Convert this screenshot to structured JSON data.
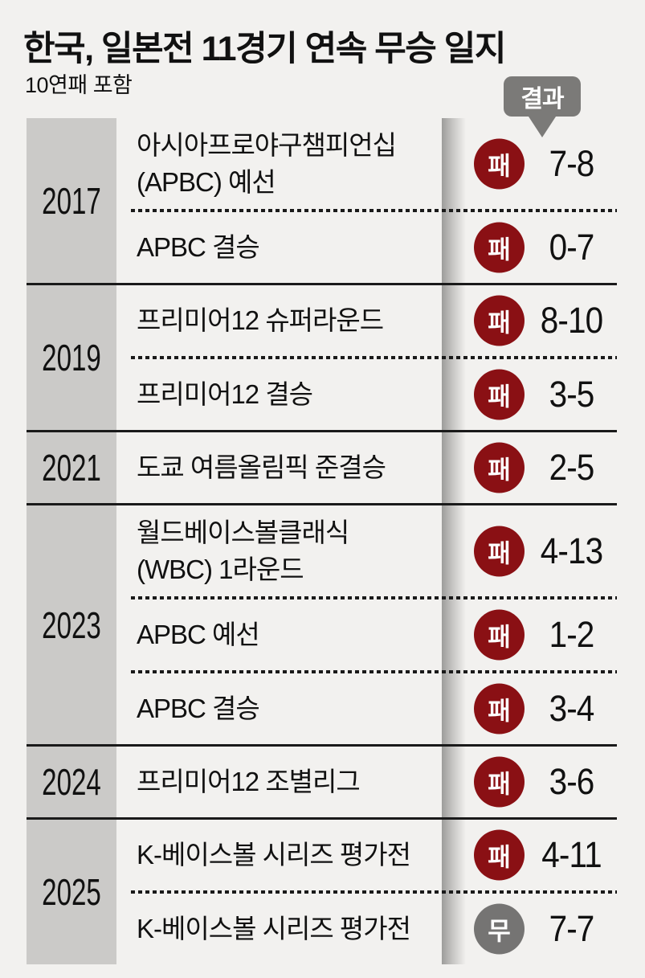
{
  "title": "한국, 일본전 11경기 연속 무승 일지",
  "subtitle": "10연패 포함",
  "callout": {
    "label": "결과"
  },
  "colors": {
    "page_bg": "#f2f1ef",
    "year_column_bg": "#cbcac8",
    "loss_badge": "#8a1014",
    "draw_badge": "#757473",
    "callout_bg": "#7b7a78",
    "line": "#1a1a1a",
    "text": "#111111",
    "badge_text": "#ffffff"
  },
  "chart_data": {
    "type": "table",
    "title": "한국, 일본전 11경기 연속 무승 일지",
    "subtitle": "10연패 포함",
    "columns": [
      "연도",
      "경기",
      "결과",
      "점수"
    ],
    "result_types": {
      "패": "loss",
      "무": "draw"
    },
    "groups": [
      {
        "year": "2017",
        "rows": [
          {
            "event": "아시아프로야구챔피언십 (APBC) 예선",
            "event_lines": [
              "아시아프로야구챔피언십",
              "(APBC) 예선"
            ],
            "result": "패",
            "outcome": "loss",
            "score": "7-8"
          },
          {
            "event": "APBC 결승",
            "event_lines": [
              "APBC 결승"
            ],
            "result": "패",
            "outcome": "loss",
            "score": "0-7"
          }
        ]
      },
      {
        "year": "2019",
        "rows": [
          {
            "event": "프리미어12 슈퍼라운드",
            "event_lines": [
              "프리미어12 슈퍼라운드"
            ],
            "result": "패",
            "outcome": "loss",
            "score": "8-10"
          },
          {
            "event": "프리미어12 결승",
            "event_lines": [
              "프리미어12 결승"
            ],
            "result": "패",
            "outcome": "loss",
            "score": "3-5"
          }
        ]
      },
      {
        "year": "2021",
        "rows": [
          {
            "event": "도쿄 여름올림픽 준결승",
            "event_lines": [
              "도쿄 여름올림픽 준결승"
            ],
            "result": "패",
            "outcome": "loss",
            "score": "2-5"
          }
        ]
      },
      {
        "year": "2023",
        "rows": [
          {
            "event": "월드베이스볼클래식 (WBC) 1라운드",
            "event_lines": [
              "월드베이스볼클래식",
              "(WBC) 1라운드"
            ],
            "result": "패",
            "outcome": "loss",
            "score": "4-13"
          },
          {
            "event": "APBC 예선",
            "event_lines": [
              "APBC 예선"
            ],
            "result": "패",
            "outcome": "loss",
            "score": "1-2"
          },
          {
            "event": "APBC 결승",
            "event_lines": [
              "APBC 결승"
            ],
            "result": "패",
            "outcome": "loss",
            "score": "3-4"
          }
        ]
      },
      {
        "year": "2024",
        "rows": [
          {
            "event": "프리미어12 조별리그",
            "event_lines": [
              "프리미어12 조별리그"
            ],
            "result": "패",
            "outcome": "loss",
            "score": "3-6"
          }
        ]
      },
      {
        "year": "2025",
        "rows": [
          {
            "event": "K-베이스볼 시리즈 평가전",
            "event_lines": [
              "K-베이스볼 시리즈 평가전"
            ],
            "result": "패",
            "outcome": "loss",
            "score": "4-11"
          },
          {
            "event": "K-베이스볼 시리즈 평가전",
            "event_lines": [
              "K-베이스볼 시리즈 평가전"
            ],
            "result": "무",
            "outcome": "draw",
            "score": "7-7"
          }
        ]
      }
    ]
  }
}
